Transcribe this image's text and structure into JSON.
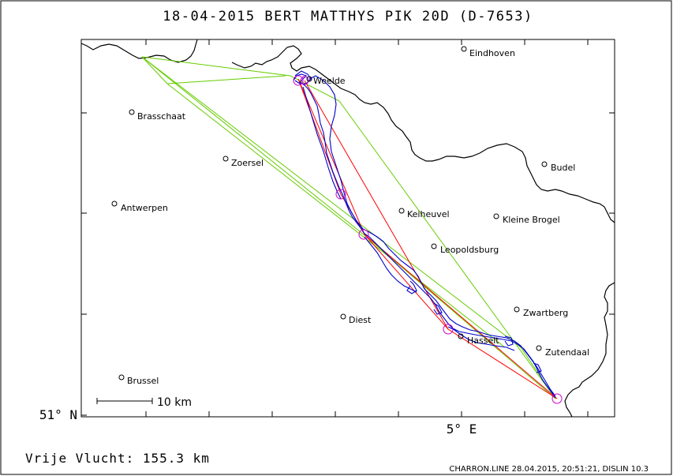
{
  "header": {
    "title": "18-04-2015   BERT MATTHYS   PIK 20D (D-7653)"
  },
  "axes": {
    "lat_label": "51° N",
    "lon_label": "5° E"
  },
  "scale_bar": {
    "label": "10 km"
  },
  "footer": {
    "distance_label": "Vrije Vlucht:  155.3 km",
    "credit": "CHARRON.LINE 28.04.2015, 20:51:21, DISLIN 10.3"
  },
  "places": [
    {
      "name": "Eindhoven"
    },
    {
      "name": "Weelde"
    },
    {
      "name": "Brasschaat"
    },
    {
      "name": "Zoersel"
    },
    {
      "name": "Budel"
    },
    {
      "name": "Antwerpen"
    },
    {
      "name": "Keiheuvel"
    },
    {
      "name": "Kleine Brogel"
    },
    {
      "name": "Leopoldsburg"
    },
    {
      "name": "Zwartberg"
    },
    {
      "name": "Diest"
    },
    {
      "name": "Hasselt"
    },
    {
      "name": "Zutendaal"
    },
    {
      "name": "Brussel"
    }
  ],
  "colors": {
    "flight_track": "#0000cc",
    "task_route": "#ff0000",
    "free_flight": "#66cc00",
    "turnpoints": "#cc00cc",
    "border": "#000000"
  }
}
